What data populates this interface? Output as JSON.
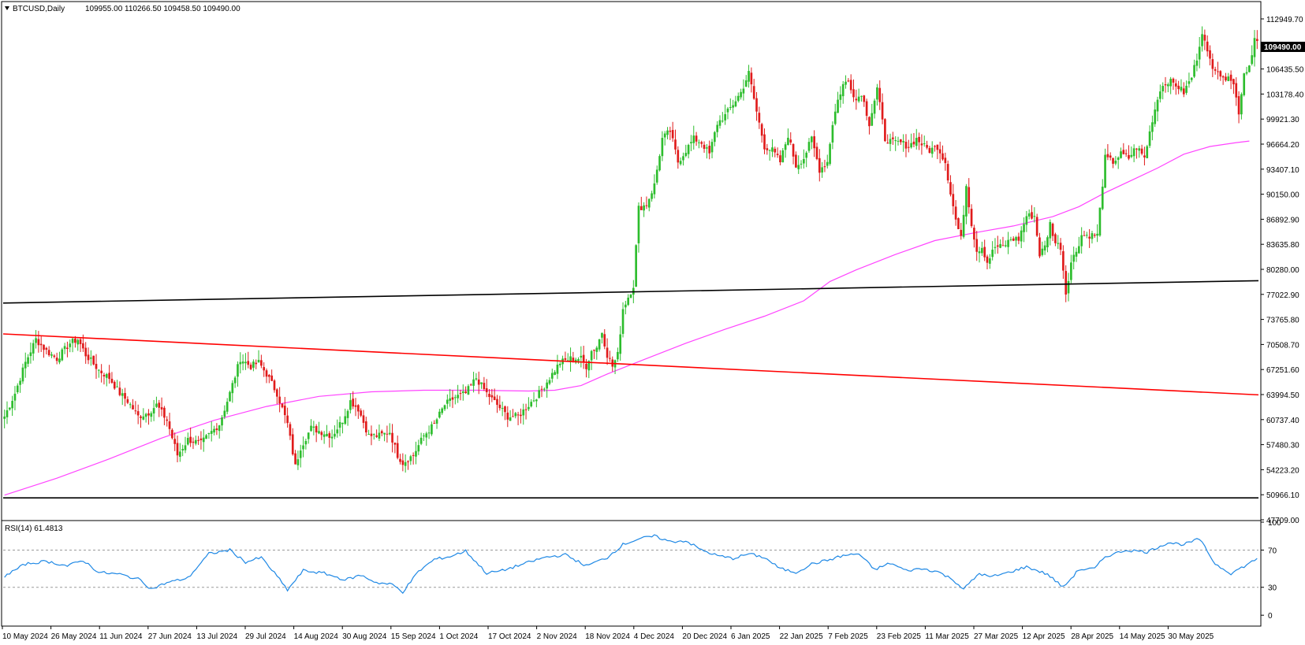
{
  "header": {
    "symbol": "BTCUSD,Daily",
    "ohlc": "109955.00 110266.50 109458.50 109490.00"
  },
  "current_price_tag": "109490.00",
  "rsi": {
    "label": "RSI(14) 61.4813",
    "levels": [
      "100",
      "70",
      "30",
      "0"
    ]
  },
  "price_axis_labels": [
    "112949.70",
    "109692.80",
    "106435.50",
    "103178.40",
    "99921.30",
    "96664.20",
    "93407.10",
    "90150.00",
    "86892.90",
    "83635.80",
    "80280.00",
    "77022.90",
    "73765.80",
    "70508.70",
    "67251.60",
    "63994.50",
    "60737.40",
    "57480.30",
    "54223.20",
    "50966.10",
    "47709.00"
  ],
  "date_labels": [
    "10 May 2024",
    "26 May 2024",
    "11 Jun 2024",
    "27 Jun 2024",
    "13 Jul 2024",
    "29 Jul 2024",
    "14 Aug 2024",
    "30 Aug 2024",
    "15 Sep 2024",
    "1 Oct 2024",
    "17 Oct 2024",
    "2 Nov 2024",
    "18 Nov 2024",
    "4 Dec 2024",
    "20 Dec 2024",
    "6 Jan 2025",
    "22 Jan 2025",
    "7 Feb 2025",
    "23 Feb 2025",
    "11 Mar 2025",
    "27 Mar 2025",
    "12 Apr 2025",
    "28 Apr 2025",
    "14 May 2025",
    "30 May 2025"
  ],
  "colors": {
    "bull": "#2dbd2d",
    "bear": "#e01b1b",
    "ma": "#ff44ff",
    "rsi": "#1e88e5",
    "trend_red": "#ff0000",
    "trend_black": "#000000",
    "grid": "#c8c8c8"
  },
  "chart_data": {
    "type": "candlestick",
    "ylim": [
      47709,
      114578
    ],
    "x_dates": [
      "2024-05-10",
      "2024-05-26",
      "2024-06-11",
      "2024-06-27",
      "2024-07-13",
      "2024-07-29",
      "2024-08-14",
      "2024-08-30",
      "2024-09-15",
      "2024-10-01",
      "2024-10-17",
      "2024-11-02",
      "2024-11-18",
      "2024-12-04",
      "2024-12-20",
      "2025-01-06",
      "2025-01-22",
      "2025-02-07",
      "2025-02-23",
      "2025-03-11",
      "2025-03-27",
      "2025-04-12",
      "2025-04-28",
      "2025-05-14",
      "2025-05-30"
    ],
    "close_path": [
      [
        0,
        61000
      ],
      [
        4,
        64000
      ],
      [
        8,
        68000
      ],
      [
        12,
        71000
      ],
      [
        16,
        69500
      ],
      [
        20,
        68500
      ],
      [
        25,
        70500
      ],
      [
        28,
        71000
      ],
      [
        31,
        69000
      ],
      [
        36,
        67000
      ],
      [
        40,
        66000
      ],
      [
        44,
        64000
      ],
      [
        47,
        63000
      ],
      [
        51,
        61000
      ],
      [
        55,
        61500
      ],
      [
        58,
        62500
      ],
      [
        62,
        60500
      ],
      [
        66,
        56000
      ],
      [
        70,
        58000
      ],
      [
        75,
        57500
      ],
      [
        79,
        59000
      ],
      [
        82,
        60000
      ],
      [
        86,
        64000
      ],
      [
        90,
        68500
      ],
      [
        94,
        67500
      ],
      [
        97,
        68000
      ],
      [
        100,
        66500
      ],
      [
        104,
        64000
      ],
      [
        108,
        60000
      ],
      [
        111,
        54500
      ],
      [
        113,
        57000
      ],
      [
        117,
        59500
      ],
      [
        121,
        59000
      ],
      [
        125,
        58500
      ],
      [
        129,
        60500
      ],
      [
        132,
        63000
      ],
      [
        135,
        62000
      ],
      [
        139,
        58500
      ],
      [
        143,
        58500
      ],
      [
        147,
        59000
      ],
      [
        150,
        56000
      ],
      [
        152,
        55000
      ],
      [
        156,
        56000
      ],
      [
        160,
        58500
      ],
      [
        164,
        60000
      ],
      [
        168,
        62500
      ],
      [
        172,
        63500
      ],
      [
        176,
        64000
      ],
      [
        180,
        66000
      ],
      [
        184,
        64000
      ],
      [
        188,
        62500
      ],
      [
        192,
        61000
      ],
      [
        196,
        61000
      ],
      [
        200,
        62500
      ],
      [
        204,
        64000
      ],
      [
        208,
        66000
      ],
      [
        212,
        68000
      ],
      [
        216,
        68500
      ],
      [
        220,
        68500
      ],
      [
        222,
        67500
      ],
      [
        224,
        69500
      ],
      [
        226,
        70000
      ],
      [
        228,
        72000
      ],
      [
        230,
        69000
      ],
      [
        232,
        67500
      ],
      [
        234,
        69000
      ],
      [
        236,
        75000
      ],
      [
        238,
        76500
      ],
      [
        240,
        78000
      ],
      [
        242,
        88000
      ],
      [
        245,
        88500
      ],
      [
        248,
        91000
      ],
      [
        251,
        97000
      ],
      [
        254,
        98000
      ],
      [
        257,
        94000
      ],
      [
        260,
        95500
      ],
      [
        263,
        97000
      ],
      [
        266,
        96500
      ],
      [
        269,
        95000
      ],
      [
        272,
        99000
      ],
      [
        275,
        100000
      ],
      [
        278,
        101500
      ],
      [
        281,
        103000
      ],
      [
        284,
        105500
      ],
      [
        287,
        100500
      ],
      [
        290,
        96000
      ],
      [
        293,
        95500
      ],
      [
        296,
        94000
      ],
      [
        299,
        97500
      ],
      [
        302,
        93500
      ],
      [
        305,
        94500
      ],
      [
        308,
        97000
      ],
      [
        311,
        93000
      ],
      [
        314,
        94000
      ],
      [
        316,
        99000
      ],
      [
        318,
        102000
      ],
      [
        320,
        104000
      ],
      [
        322,
        104500
      ],
      [
        325,
        102000
      ],
      [
        327,
        103000
      ],
      [
        330,
        99000
      ],
      [
        333,
        103500
      ],
      [
        336,
        97000
      ],
      [
        339,
        96500
      ],
      [
        342,
        96500
      ],
      [
        345,
        96000
      ],
      [
        348,
        97000
      ],
      [
        351,
        96000
      ],
      [
        353,
        95500
      ],
      [
        356,
        96000
      ],
      [
        359,
        94000
      ],
      [
        361,
        90000
      ],
      [
        363,
        86500
      ],
      [
        365,
        84000
      ],
      [
        367,
        91000
      ],
      [
        369,
        86000
      ],
      [
        371,
        82500
      ],
      [
        373,
        83000
      ],
      [
        375,
        81000
      ],
      [
        378,
        83000
      ],
      [
        381,
        83000
      ],
      [
        384,
        84000
      ],
      [
        387,
        84000
      ],
      [
        390,
        87000
      ],
      [
        393,
        87000
      ],
      [
        395,
        82000
      ],
      [
        397,
        83000
      ],
      [
        399,
        86000
      ],
      [
        401,
        83500
      ],
      [
        403,
        83000
      ],
      [
        405,
        77000
      ],
      [
        407,
        81000
      ],
      [
        409,
        82500
      ],
      [
        411,
        84500
      ],
      [
        414,
        84500
      ],
      [
        417,
        84500
      ],
      [
        420,
        94500
      ],
      [
        423,
        94000
      ],
      [
        426,
        95000
      ],
      [
        429,
        94500
      ],
      [
        432,
        96000
      ],
      [
        435,
        94500
      ],
      [
        438,
        99500
      ],
      [
        441,
        103500
      ],
      [
        444,
        104500
      ],
      [
        447,
        104000
      ],
      [
        450,
        103000
      ],
      [
        453,
        105000
      ],
      [
        455,
        107500
      ],
      [
        457,
        111000
      ],
      [
        459,
        108000
      ],
      [
        461,
        106500
      ],
      [
        463,
        106000
      ],
      [
        465,
        104500
      ],
      [
        467,
        105500
      ],
      [
        469,
        104000
      ],
      [
        471,
        100500
      ],
      [
        473,
        105500
      ],
      [
        475,
        106500
      ],
      [
        477,
        110000
      ],
      [
        478,
        109490
      ]
    ],
    "ma_path": [
      [
        0,
        50800
      ],
      [
        20,
        53000
      ],
      [
        40,
        55500
      ],
      [
        60,
        58200
      ],
      [
        80,
        60500
      ],
      [
        100,
        62300
      ],
      [
        120,
        63600
      ],
      [
        140,
        64200
      ],
      [
        160,
        64400
      ],
      [
        180,
        64400
      ],
      [
        200,
        64300
      ],
      [
        210,
        64400
      ],
      [
        220,
        65000
      ],
      [
        230,
        66500
      ],
      [
        245,
        68500
      ],
      [
        260,
        70500
      ],
      [
        275,
        72300
      ],
      [
        290,
        74000
      ],
      [
        305,
        76000
      ],
      [
        315,
        78500
      ],
      [
        325,
        80000
      ],
      [
        340,
        82000
      ],
      [
        355,
        83800
      ],
      [
        370,
        84800
      ],
      [
        385,
        85700
      ],
      [
        400,
        86900
      ],
      [
        410,
        88200
      ],
      [
        420,
        90000
      ],
      [
        430,
        91600
      ],
      [
        440,
        93200
      ],
      [
        450,
        95000
      ],
      [
        460,
        96000
      ],
      [
        470,
        96500
      ],
      [
        475,
        96700
      ]
    ],
    "trendlines": [
      {
        "color": "black",
        "points": [
          [
            0,
            75700
          ],
          [
            478,
            78600
          ]
        ]
      },
      {
        "color": "red",
        "points": [
          [
            0,
            71700
          ],
          [
            478,
            63800
          ]
        ]
      },
      {
        "color": "black",
        "points": [
          [
            0,
            50450
          ],
          [
            478,
            50450
          ]
        ]
      }
    ],
    "rsi_path": [
      [
        0,
        42
      ],
      [
        8,
        55
      ],
      [
        16,
        58
      ],
      [
        24,
        53
      ],
      [
        30,
        59
      ],
      [
        36,
        46
      ],
      [
        44,
        44
      ],
      [
        52,
        38
      ],
      [
        56,
        28
      ],
      [
        62,
        35
      ],
      [
        70,
        40
      ],
      [
        78,
        66
      ],
      [
        86,
        70
      ],
      [
        92,
        57
      ],
      [
        98,
        62
      ],
      [
        104,
        42
      ],
      [
        108,
        27
      ],
      [
        114,
        48
      ],
      [
        122,
        45
      ],
      [
        130,
        38
      ],
      [
        136,
        43
      ],
      [
        142,
        35
      ],
      [
        148,
        33
      ],
      [
        152,
        25
      ],
      [
        158,
        47
      ],
      [
        164,
        60
      ],
      [
        170,
        63
      ],
      [
        176,
        69
      ],
      [
        184,
        45
      ],
      [
        190,
        48
      ],
      [
        198,
        55
      ],
      [
        206,
        62
      ],
      [
        214,
        65
      ],
      [
        222,
        53
      ],
      [
        230,
        62
      ],
      [
        236,
        76
      ],
      [
        242,
        82
      ],
      [
        248,
        85
      ],
      [
        254,
        79
      ],
      [
        260,
        80
      ],
      [
        266,
        70
      ],
      [
        272,
        64
      ],
      [
        278,
        61
      ],
      [
        284,
        66
      ],
      [
        290,
        62
      ],
      [
        296,
        50
      ],
      [
        302,
        46
      ],
      [
        308,
        55
      ],
      [
        314,
        59
      ],
      [
        320,
        64
      ],
      [
        326,
        66
      ],
      [
        332,
        49
      ],
      [
        338,
        56
      ],
      [
        344,
        48
      ],
      [
        350,
        50
      ],
      [
        356,
        47
      ],
      [
        362,
        38
      ],
      [
        366,
        28
      ],
      [
        372,
        45
      ],
      [
        376,
        41
      ],
      [
        382,
        45
      ],
      [
        390,
        52
      ],
      [
        398,
        44
      ],
      [
        404,
        30
      ],
      [
        410,
        49
      ],
      [
        416,
        50
      ],
      [
        420,
        63
      ],
      [
        428,
        70
      ],
      [
        436,
        68
      ],
      [
        444,
        78
      ],
      [
        450,
        76
      ],
      [
        456,
        82
      ],
      [
        462,
        55
      ],
      [
        468,
        45
      ],
      [
        474,
        54
      ],
      [
        478,
        61
      ]
    ]
  }
}
